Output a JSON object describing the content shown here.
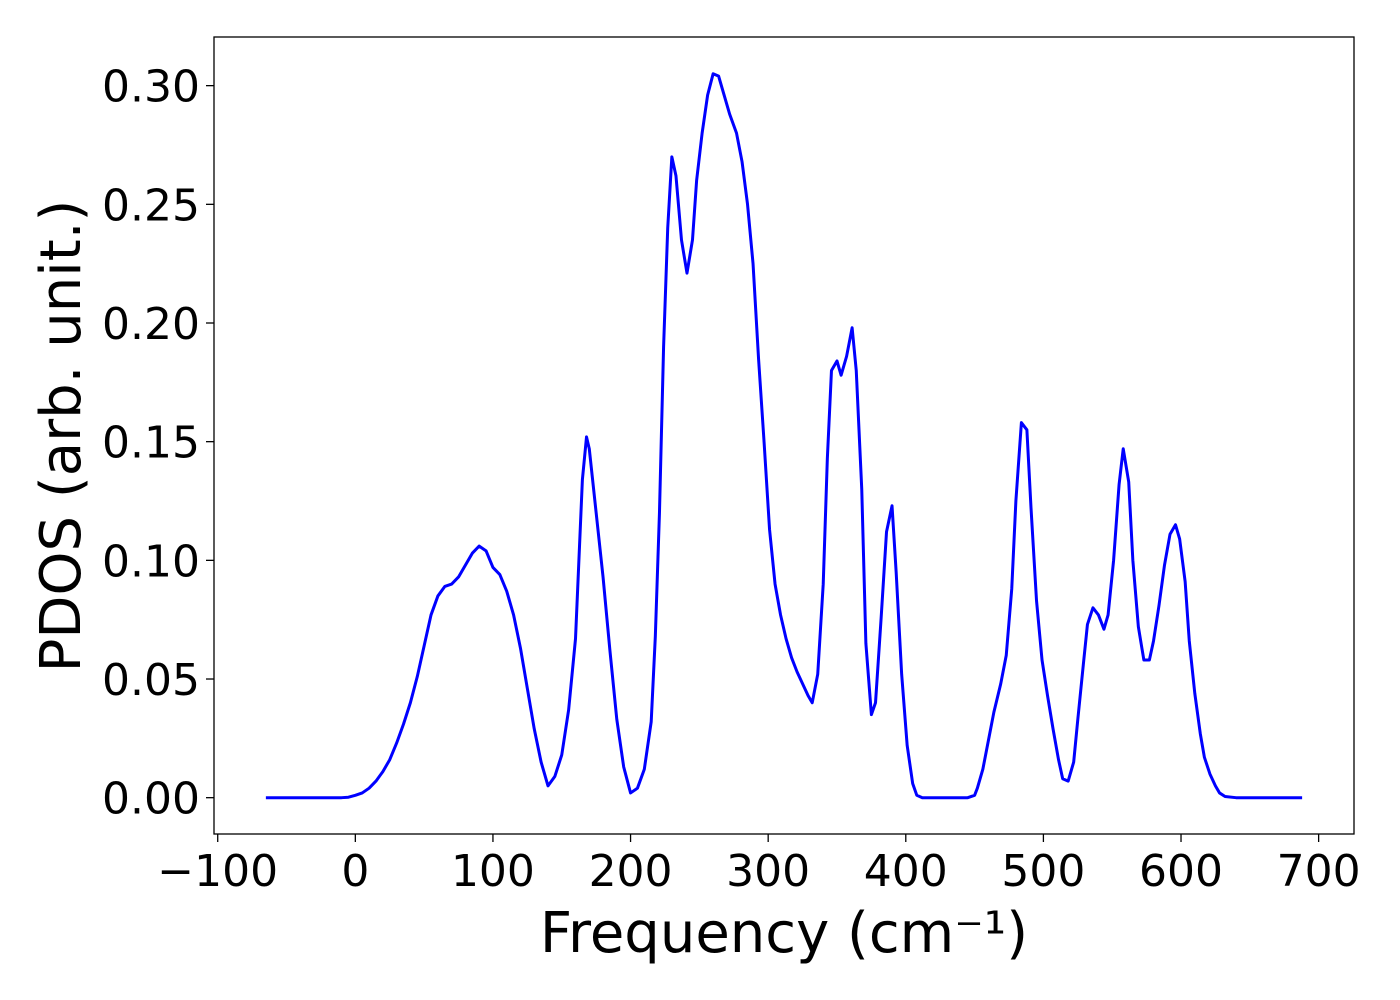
{
  "chart_data": {
    "type": "line",
    "xlabel": "Frequency (cm⁻¹)",
    "ylabel": "PDOS (arb. unit.)",
    "xlim": [
      -102.7,
      725.7
    ],
    "ylim": [
      -0.0153,
      0.3205
    ],
    "xticks": [
      {
        "value": -100,
        "label": "−100"
      },
      0,
      100,
      200,
      300,
      400,
      500,
      600,
      700
    ],
    "yticks": [
      {
        "value": 0,
        "label": "0.00"
      },
      {
        "value": 0.05,
        "label": "0.05"
      },
      {
        "value": 0.1,
        "label": "0.10"
      },
      {
        "value": 0.15,
        "label": "0.15"
      },
      {
        "value": 0.2,
        "label": "0.20"
      },
      {
        "value": 0.25,
        "label": "0.25"
      },
      {
        "value": 0.3,
        "label": "0.30"
      }
    ],
    "grid": false,
    "series": [
      {
        "color": "#0000ff",
        "x": [
          -65,
          -10,
          -5,
          0,
          5,
          10,
          15,
          20,
          25,
          30,
          35,
          40,
          45,
          50,
          55,
          60,
          65,
          70,
          75,
          80,
          85,
          90,
          95,
          100,
          105,
          110,
          115,
          120,
          125,
          130,
          135,
          140,
          145,
          150,
          155,
          160,
          165,
          168,
          170,
          175,
          180,
          185,
          190,
          195,
          200,
          205,
          210,
          215,
          218,
          221,
          224,
          227,
          230,
          233,
          237,
          241,
          245,
          248,
          252,
          256,
          260,
          264,
          268,
          272,
          277,
          281,
          285,
          289,
          293,
          297,
          301,
          305,
          309,
          313,
          317,
          321,
          325,
          329,
          332,
          336,
          340,
          343,
          346,
          350,
          353,
          357,
          361,
          364,
          368,
          371,
          375,
          378,
          382,
          386,
          390,
          393,
          397,
          401,
          405,
          408,
          412,
          445,
          450,
          452,
          456,
          460,
          464,
          469,
          473,
          477,
          480,
          484,
          488,
          491,
          495,
          499,
          503,
          507,
          511,
          514,
          518,
          522,
          525,
          529,
          532,
          536,
          540,
          544,
          547,
          551,
          555,
          558,
          562,
          565,
          569,
          573,
          577,
          580,
          584,
          588,
          592,
          596,
          599,
          603,
          606,
          610,
          614,
          617,
          621,
          625,
          628,
          632,
          640,
          688
        ],
        "values": [
          0,
          0,
          0.0002,
          0.001,
          0.002,
          0.004,
          0.007,
          0.011,
          0.016,
          0.023,
          0.031,
          0.04,
          0.051,
          0.064,
          0.077,
          0.085,
          0.089,
          0.09,
          0.093,
          0.098,
          0.103,
          0.106,
          0.104,
          0.097,
          0.094,
          0.087,
          0.077,
          0.063,
          0.046,
          0.029,
          0.015,
          0.005,
          0.009,
          0.018,
          0.037,
          0.067,
          0.134,
          0.152,
          0.147,
          0.12,
          0.093,
          0.062,
          0.033,
          0.013,
          0.002,
          0.004,
          0.012,
          0.032,
          0.068,
          0.12,
          0.19,
          0.24,
          0.27,
          0.262,
          0.235,
          0.221,
          0.235,
          0.26,
          0.28,
          0.296,
          0.305,
          0.304,
          0.296,
          0.288,
          0.28,
          0.268,
          0.25,
          0.225,
          0.185,
          0.15,
          0.113,
          0.09,
          0.077,
          0.067,
          0.059,
          0.053,
          0.048,
          0.043,
          0.04,
          0.052,
          0.09,
          0.143,
          0.18,
          0.184,
          0.178,
          0.186,
          0.198,
          0.18,
          0.13,
          0.065,
          0.035,
          0.04,
          0.075,
          0.112,
          0.123,
          0.095,
          0.052,
          0.022,
          0.006,
          0.001,
          0,
          0,
          0.001,
          0.004,
          0.012,
          0.024,
          0.036,
          0.048,
          0.06,
          0.088,
          0.125,
          0.158,
          0.155,
          0.122,
          0.083,
          0.058,
          0.043,
          0.029,
          0.016,
          0.008,
          0.007,
          0.015,
          0.033,
          0.056,
          0.073,
          0.08,
          0.077,
          0.071,
          0.077,
          0.1,
          0.132,
          0.147,
          0.133,
          0.1,
          0.072,
          0.058,
          0.058,
          0.066,
          0.081,
          0.098,
          0.111,
          0.115,
          0.109,
          0.091,
          0.066,
          0.044,
          0.027,
          0.017,
          0.01,
          0.005,
          0.002,
          0.0005,
          0,
          0
        ]
      }
    ]
  }
}
